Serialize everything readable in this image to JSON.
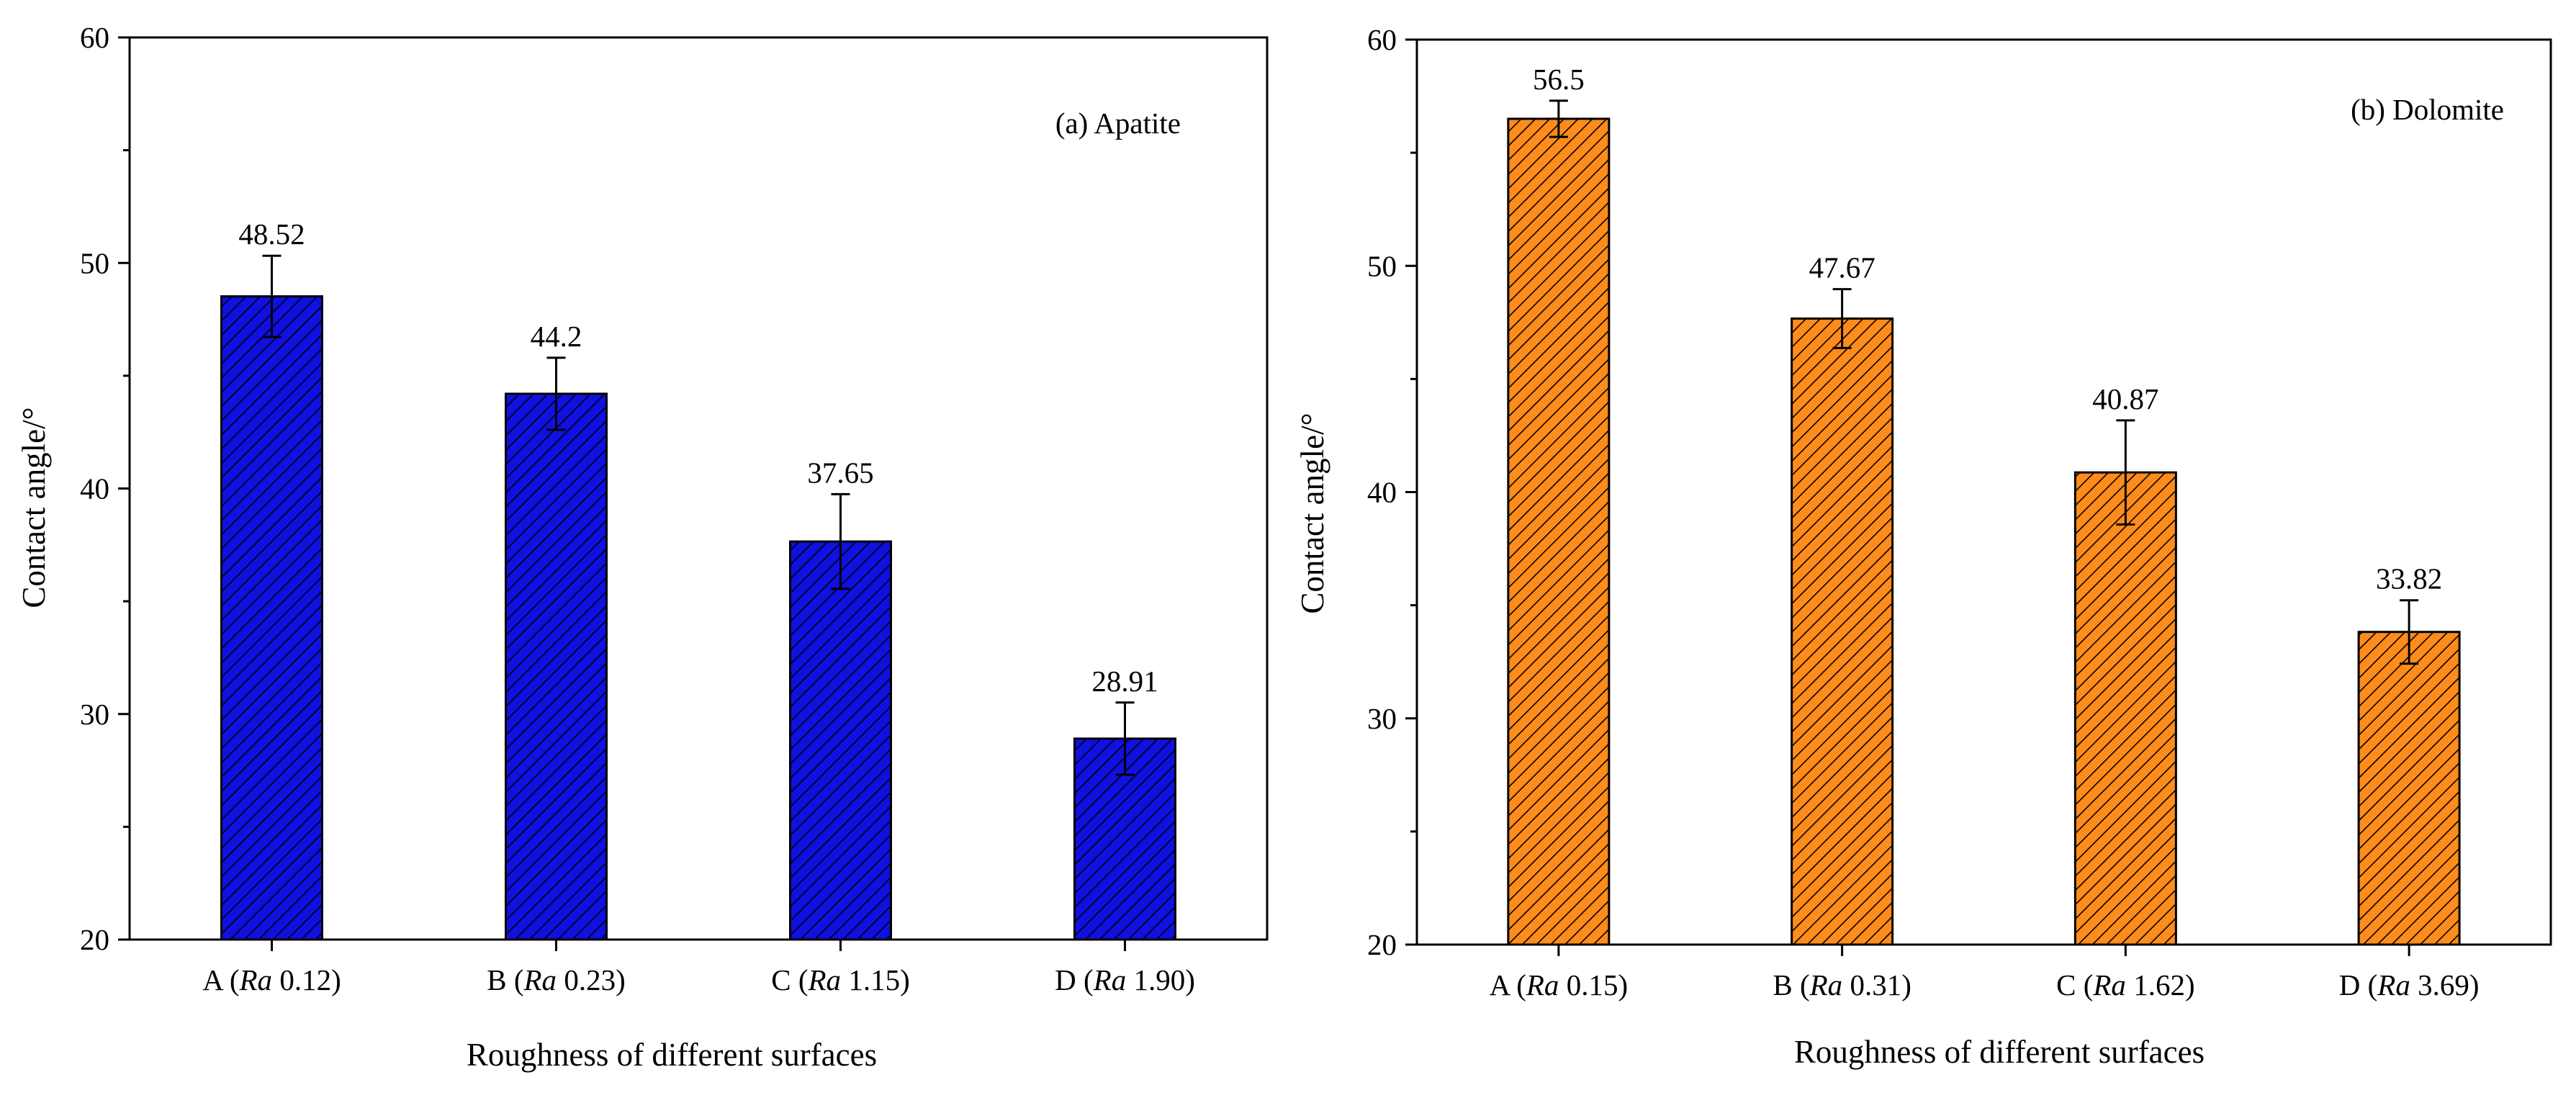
{
  "chart_data": [
    {
      "type": "bar",
      "title": "(a) Apatite",
      "xlabel": "Roughness of different surfaces",
      "ylabel": "Contact angle/°",
      "ylim": [
        20,
        60
      ],
      "yticks": [
        20,
        30,
        40,
        50,
        60
      ],
      "categories": [
        {
          "prefix": "A (",
          "ra": "Ra",
          "suffix": " 0.12)"
        },
        {
          "prefix": "B (",
          "ra": "Ra",
          "suffix": " 0.23)"
        },
        {
          "prefix": "C (",
          "ra": "Ra",
          "suffix": " 1.15)"
        },
        {
          "prefix": "D (",
          "ra": "Ra",
          "suffix": " 1.90)"
        }
      ],
      "values": [
        48.52,
        44.2,
        37.65,
        28.91
      ],
      "data_labels": [
        "48.52",
        "44.2",
        "37.65",
        "28.91"
      ],
      "errors": [
        1.8,
        1.6,
        2.1,
        1.6
      ],
      "color": "#1010e0",
      "hatch_color": "#000000"
    },
    {
      "type": "bar",
      "title": "(b) Dolomite",
      "xlabel": "Roughness of different surfaces",
      "ylabel": "Contact angle/°",
      "ylim": [
        20,
        60
      ],
      "yticks": [
        20,
        30,
        40,
        50,
        60
      ],
      "categories": [
        {
          "prefix": "A (",
          "ra": "Ra",
          "suffix": " 0.15)"
        },
        {
          "prefix": "B (",
          "ra": "Ra",
          "suffix": " 0.31)"
        },
        {
          "prefix": "C (",
          "ra": "Ra",
          "suffix": " 1.62)"
        },
        {
          "prefix": "D (",
          "ra": "Ra",
          "suffix": " 3.69)"
        }
      ],
      "values": [
        56.5,
        47.67,
        40.87,
        33.82
      ],
      "data_labels": [
        "56.5",
        "47.67",
        "40.87",
        "33.82"
      ],
      "errors": [
        0.8,
        1.3,
        2.3,
        1.4
      ],
      "color": "#ff8c1a",
      "hatch_color": "#000000"
    }
  ]
}
